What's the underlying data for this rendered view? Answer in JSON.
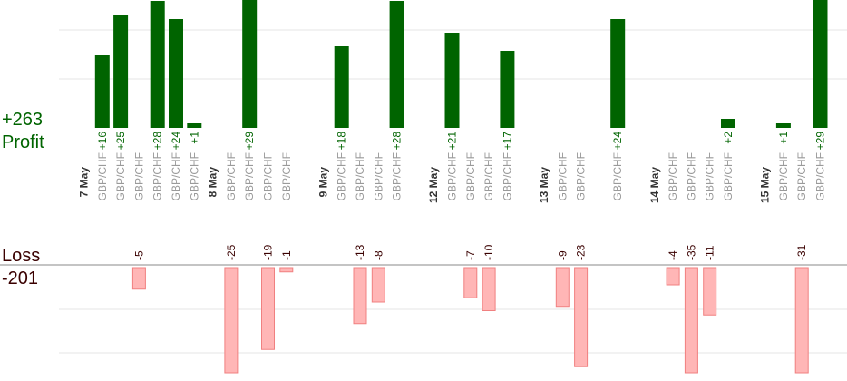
{
  "summary": {
    "profit_total": "+263",
    "profit_label": "Profit",
    "loss_label": "Loss",
    "loss_total": "-201"
  },
  "colors": {
    "profit_bar": "#006400",
    "profit_text": "#006400",
    "loss_bar": "#ffb6b6",
    "loss_bar_edge": "#f08080",
    "loss_text": "#3a0000",
    "grid": "#e6e6e6",
    "axis": "#888888"
  },
  "chart_data": {
    "type": "bar",
    "profit_axis_range": [
      0,
      28
    ],
    "loss_axis_range": [
      -25,
      0
    ],
    "grid": true,
    "dates": [
      {
        "label": "7 May",
        "slot": 0
      },
      {
        "label": "8 May",
        "slot": 7
      },
      {
        "label": "9 May",
        "slot": 13
      },
      {
        "label": "12 May",
        "slot": 19
      },
      {
        "label": "13 May",
        "slot": 25
      },
      {
        "label": "14 May",
        "slot": 31
      },
      {
        "label": "15 May",
        "slot": 37
      }
    ],
    "trades": [
      {
        "slot": 1,
        "pair": "GBP/CHF",
        "value": 16,
        "label": "+16"
      },
      {
        "slot": 2,
        "pair": "GBP/CHF",
        "value": 25,
        "label": "+25"
      },
      {
        "slot": 3,
        "pair": "GBP/CHF",
        "value": -5,
        "label": "-5"
      },
      {
        "slot": 4,
        "pair": "GBP/CHF",
        "value": 28,
        "label": "+28"
      },
      {
        "slot": 5,
        "pair": "GBP/CHF",
        "value": 24,
        "label": "+24"
      },
      {
        "slot": 6,
        "pair": "GBP/CHF",
        "value": 1,
        "label": "+1"
      },
      {
        "slot": 8,
        "pair": "GBP/CHF",
        "value": -25,
        "label": "-25"
      },
      {
        "slot": 9,
        "pair": "GBP/CHF",
        "value": 29,
        "label": "+29"
      },
      {
        "slot": 10,
        "pair": "GBP/CHF",
        "value": -19,
        "label": "-19"
      },
      {
        "slot": 11,
        "pair": "GBP/CHF",
        "value": -1,
        "label": "-1"
      },
      {
        "slot": 14,
        "pair": "GBP/CHF",
        "value": 18,
        "label": "+18"
      },
      {
        "slot": 15,
        "pair": "GBP/CHF",
        "value": -13,
        "label": "-13"
      },
      {
        "slot": 16,
        "pair": "GBP/CHF",
        "value": -8,
        "label": "-8"
      },
      {
        "slot": 17,
        "pair": "GBP/CHF",
        "value": 28,
        "label": "+28"
      },
      {
        "slot": 20,
        "pair": "GBP/CHF",
        "value": 21,
        "label": "+21"
      },
      {
        "slot": 21,
        "pair": "GBP/CHF",
        "value": -7,
        "label": "-7"
      },
      {
        "slot": 22,
        "pair": "GBP/CHF",
        "value": -10,
        "label": "-10"
      },
      {
        "slot": 23,
        "pair": "GBP/CHF",
        "value": 17,
        "label": "+17"
      },
      {
        "slot": 26,
        "pair": "GBP/CHF",
        "value": -9,
        "label": "-9"
      },
      {
        "slot": 27,
        "pair": "GBP/CHF",
        "value": -23,
        "label": "-23"
      },
      {
        "slot": 29,
        "pair": "GBP/CHF",
        "value": 24,
        "label": "+24"
      },
      {
        "slot": 32,
        "pair": "GBP/CHF",
        "value": -4,
        "label": "-4"
      },
      {
        "slot": 33,
        "pair": "GBP/CHF",
        "value": -35,
        "label": "-35"
      },
      {
        "slot": 34,
        "pair": "GBP/CHF",
        "value": -11,
        "label": "-11"
      },
      {
        "slot": 35,
        "pair": "GBP/CHF",
        "value": 2,
        "label": "+2"
      },
      {
        "slot": 38,
        "pair": "GBP/CHF",
        "value": 1,
        "label": "+1"
      },
      {
        "slot": 39,
        "pair": "GBP/CHF",
        "value": -31,
        "label": "-31"
      },
      {
        "slot": 40,
        "pair": "GBP/CHF",
        "value": 29,
        "label": "+29"
      }
    ]
  }
}
